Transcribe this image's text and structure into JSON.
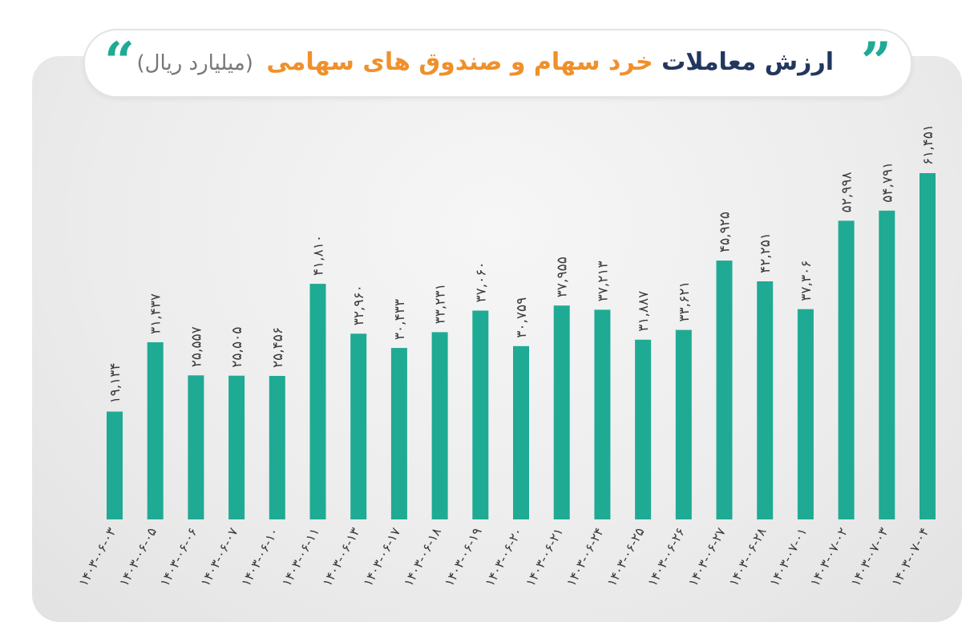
{
  "title": {
    "part1": "ارزش معاملات",
    "part2": "خرد سهام و صندوق های سهامی",
    "unit": "(میلیارد ریال)"
  },
  "colors": {
    "bar": "#1faa94",
    "title_dark": "#22375f",
    "title_accent": "#f0902a"
  },
  "chart_data": {
    "type": "bar",
    "categories": [
      "۱۴۰۳-۰۶-۰۳",
      "۱۴۰۳-۰۶-۰۵",
      "۱۴۰۳-۰۶-۰۶",
      "۱۴۰۳-۰۶-۰۷",
      "۱۴۰۳-۰۶-۱۰",
      "۱۴۰۳-۰۶-۱۱",
      "۱۴۰۳-۰۶-۱۳",
      "۱۴۰۳-۰۶-۱۷",
      "۱۴۰۳-۰۶-۱۸",
      "۱۴۰۳-۰۶-۱۹",
      "۱۴۰۳-۰۶-۲۰",
      "۱۴۰۳-۰۶-۲۱",
      "۱۴۰۳-۰۶-۲۴",
      "۱۴۰۳-۰۶-۲۵",
      "۱۴۰۳-۰۶-۲۶",
      "۱۴۰۳-۰۶-۲۷",
      "۱۴۰۳-۰۶-۲۸",
      "۱۴۰۳-۰۷-۰۱",
      "۱۴۰۳-۰۷-۰۲",
      "۱۴۰۳-۰۷-۰۳",
      "۱۴۰۳-۰۷-۰۴"
    ],
    "values": [
      19134,
      31437,
      25557,
      25505,
      25456,
      41810,
      32960,
      30433,
      33231,
      37060,
      30759,
      37955,
      37213,
      31887,
      33621,
      45925,
      42251,
      37306,
      52998,
      54791,
      61451
    ],
    "labels": [
      "۱۹,۱۳۴",
      "۳۱,۴۳۷",
      "۲۵,۵۵۷",
      "۲۵,۵۰۵",
      "۲۵,۴۵۶",
      "۴۱,۸۱۰",
      "۳۲,۹۶۰",
      "۳۰,۴۳۳",
      "۳۳,۲۳۱",
      "۳۷,۰۶۰",
      "۳۰,۷۵۹",
      "۳۷,۹۵۵",
      "۳۷,۲۱۳",
      "۳۱,۸۸۷",
      "۳۳,۶۲۱",
      "۴۵,۹۲۵",
      "۴۲,۲۵۱",
      "۳۷,۳۰۶",
      "۵۲,۹۹۸",
      "۵۴,۷۹۱",
      "۶۱,۴۵۱"
    ],
    "ylim": [
      0,
      65000
    ],
    "grid": false,
    "legend": "none"
  }
}
